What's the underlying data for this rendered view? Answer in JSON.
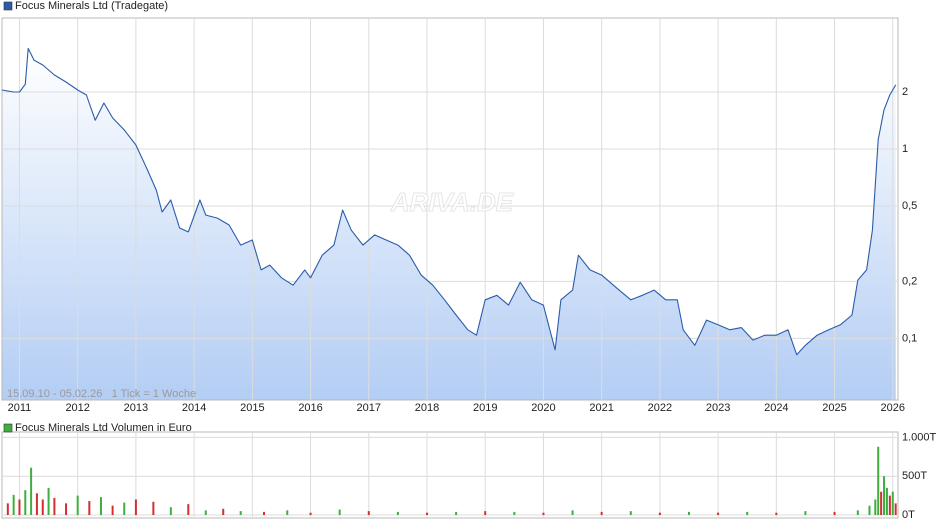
{
  "chart_data": [
    {
      "type": "line",
      "legend": "Focus Minerals Ltd (Tradegate)",
      "color": "#2a5caa",
      "log_scale": true,
      "grid": true,
      "note": "15.09.10 - 05.02.26   1 Tick = 1 Woche",
      "watermark": "ARIVA.DE",
      "xlim": [
        2010.7,
        2026.09
      ],
      "xticks": [
        2011,
        2012,
        2013,
        2014,
        2015,
        2016,
        2017,
        2018,
        2019,
        2020,
        2021,
        2022,
        2023,
        2024,
        2025,
        2026
      ],
      "ylim": [
        0.0473,
        4.92
      ],
      "yticks": [
        {
          "value": 0.1,
          "label": "0,1"
        },
        {
          "value": 0.2,
          "label": "0,2"
        },
        {
          "value": 0.5,
          "label": "0,5"
        },
        1,
        2
      ],
      "x": [
        2010.7,
        2010.9,
        2011.0,
        2011.1,
        2011.15,
        2011.25,
        2011.4,
        2011.6,
        2011.8,
        2012.0,
        2012.15,
        2012.3,
        2012.45,
        2012.6,
        2012.8,
        2013.0,
        2013.2,
        2013.35,
        2013.45,
        2013.6,
        2013.75,
        2013.9,
        2014.1,
        2014.2,
        2014.4,
        2014.6,
        2014.8,
        2015.0,
        2015.15,
        2015.3,
        2015.5,
        2015.7,
        2015.9,
        2016.0,
        2016.2,
        2016.4,
        2016.55,
        2016.7,
        2016.9,
        2017.1,
        2017.3,
        2017.5,
        2017.7,
        2017.9,
        2018.1,
        2018.3,
        2018.5,
        2018.7,
        2018.85,
        2019.0,
        2019.2,
        2019.4,
        2019.6,
        2019.8,
        2020.0,
        2020.2,
        2020.3,
        2020.5,
        2020.6,
        2020.8,
        2021.0,
        2021.3,
        2021.5,
        2021.7,
        2021.9,
        2022.1,
        2022.3,
        2022.4,
        2022.6,
        2022.8,
        2023.0,
        2023.2,
        2023.4,
        2023.6,
        2023.8,
        2024.0,
        2024.2,
        2024.35,
        2024.5,
        2024.7,
        2024.9,
        2025.1,
        2025.3,
        2025.4,
        2025.55,
        2025.65,
        2025.75,
        2025.85,
        2025.95,
        2026.05
      ],
      "values": [
        2.05,
        2.0,
        2.0,
        2.2,
        3.4,
        2.95,
        2.78,
        2.46,
        2.26,
        2.05,
        1.93,
        1.42,
        1.75,
        1.46,
        1.26,
        1.05,
        0.775,
        0.607,
        0.465,
        0.538,
        0.383,
        0.365,
        0.538,
        0.448,
        0.432,
        0.397,
        0.311,
        0.331,
        0.23,
        0.244,
        0.209,
        0.191,
        0.23,
        0.209,
        0.275,
        0.311,
        0.476,
        0.373,
        0.311,
        0.352,
        0.331,
        0.311,
        0.275,
        0.216,
        0.191,
        0.16,
        0.133,
        0.111,
        0.104,
        0.16,
        0.169,
        0.15,
        0.198,
        0.16,
        0.15,
        0.087,
        0.16,
        0.18,
        0.275,
        0.23,
        0.216,
        0.18,
        0.16,
        0.169,
        0.18,
        0.16,
        0.16,
        0.111,
        0.092,
        0.125,
        0.118,
        0.111,
        0.114,
        0.098,
        0.104,
        0.104,
        0.111,
        0.082,
        0.092,
        0.104,
        0.111,
        0.118,
        0.133,
        0.203,
        0.23,
        0.373,
        1.12,
        1.61,
        1.93,
        2.18
      ]
    },
    {
      "type": "bar",
      "legend": "Focus Minerals Ltd Volumen in Euro",
      "color": "#3fae3f",
      "grid": true,
      "xlim": [
        2010.7,
        2026.09
      ],
      "xticks": [
        2011,
        2012,
        2013,
        2014,
        2015,
        2016,
        2017,
        2018,
        2019,
        2020,
        2021,
        2022,
        2023,
        2024,
        2025,
        2026
      ],
      "ylim": [
        0,
        1070
      ],
      "yticks": [
        {
          "value": 0,
          "label": "0T"
        },
        {
          "value": 500,
          "label": "500T"
        },
        {
          "value": 1000,
          "label": "1.000T"
        }
      ],
      "x": [
        2010.8,
        2010.9,
        2011.0,
        2011.1,
        2011.2,
        2011.3,
        2011.4,
        2011.5,
        2011.6,
        2011.8,
        2012.0,
        2012.2,
        2012.4,
        2012.6,
        2012.8,
        2013.0,
        2013.3,
        2013.6,
        2013.9,
        2014.2,
        2014.5,
        2014.8,
        2015.2,
        2015.6,
        2016.0,
        2016.5,
        2017.0,
        2017.5,
        2018.0,
        2018.5,
        2019.0,
        2019.5,
        2020.0,
        2020.5,
        2021.0,
        2021.5,
        2022.0,
        2022.5,
        2023.0,
        2023.5,
        2024.0,
        2024.5,
        2025.0,
        2025.4,
        2025.6,
        2025.7,
        2025.75,
        2025.8,
        2025.85,
        2025.9,
        2025.95,
        2026.0,
        2026.05
      ],
      "values": [
        150,
        260,
        200,
        320,
        610,
        280,
        200,
        350,
        220,
        150,
        250,
        180,
        230,
        120,
        160,
        200,
        170,
        100,
        140,
        60,
        80,
        50,
        40,
        60,
        30,
        70,
        50,
        40,
        30,
        40,
        50,
        40,
        30,
        60,
        40,
        50,
        30,
        40,
        30,
        40,
        30,
        50,
        40,
        60,
        120,
        200,
        880,
        300,
        500,
        350,
        250,
        300,
        150
      ],
      "colors": [
        "#d03030",
        "#3fae3f",
        "#d03030",
        "#3fae3f",
        "#3fae3f",
        "#d03030",
        "#d03030",
        "#3fae3f",
        "#d03030",
        "#d03030",
        "#3fae3f",
        "#d03030",
        "#3fae3f",
        "#d03030",
        "#3fae3f",
        "#d03030",
        "#d03030",
        "#3fae3f",
        "#d03030",
        "#3fae3f",
        "#d03030",
        "#3fae3f",
        "#d03030",
        "#3fae3f",
        "#d03030",
        "#3fae3f",
        "#d03030",
        "#3fae3f",
        "#d03030",
        "#3fae3f",
        "#d03030",
        "#3fae3f",
        "#d03030",
        "#3fae3f",
        "#d03030",
        "#3fae3f",
        "#d03030",
        "#3fae3f",
        "#d03030",
        "#3fae3f",
        "#d03030",
        "#3fae3f",
        "#d03030",
        "#3fae3f",
        "#3fae3f",
        "#3fae3f",
        "#3fae3f",
        "#d03030",
        "#3fae3f",
        "#3fae3f",
        "#d03030",
        "#3fae3f",
        "#d03030"
      ]
    }
  ]
}
